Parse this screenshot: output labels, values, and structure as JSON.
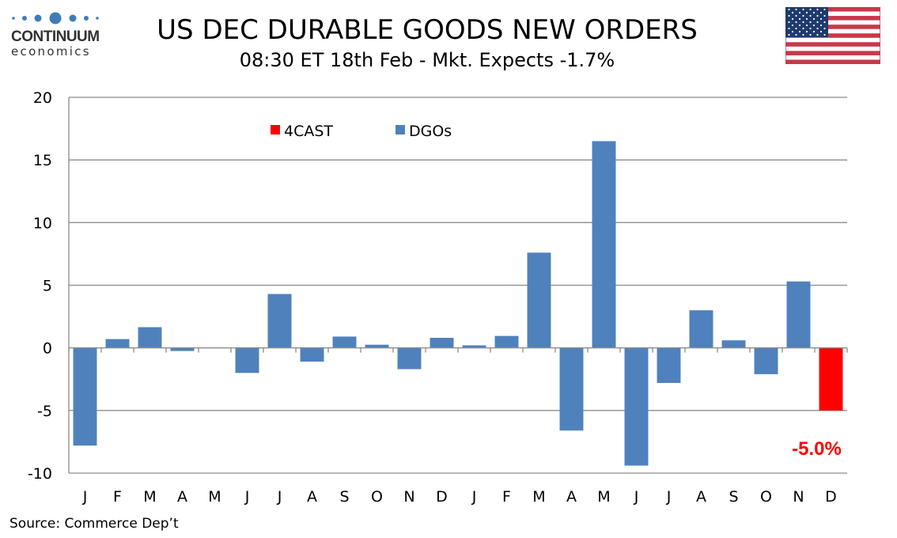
{
  "header": {
    "logo_name": "CONTINUUM",
    "logo_sub": "economics",
    "title": "US DEC DURABLE GOODS NEW ORDERS",
    "subtitle": "08:30 ET 18th Feb - Mkt. Expects -1.7%",
    "flag": "us-flag-icon"
  },
  "source": "Source: Commerce Dep’t",
  "colors": {
    "dgos": "#4f81bd",
    "forecast": "#ff0000",
    "grid": "#8c8c8c",
    "logo_blue": "#3d7cb7"
  },
  "chart_data": {
    "type": "bar",
    "title": "US DEC DURABLE GOODS NEW ORDERS",
    "subtitle": "08:30 ET 18th Feb - Mkt. Expects -1.7%",
    "xlabel": "",
    "ylabel": "",
    "ylim": [
      -10,
      20
    ],
    "yticks": [
      -10,
      -5,
      0,
      5,
      10,
      15,
      20
    ],
    "ytick_labels": [
      "-10",
      "-5",
      "0",
      "5",
      "10",
      "15",
      "20"
    ],
    "grid": true,
    "legend_position": "top-left",
    "categories": [
      "J",
      "F",
      "M",
      "A",
      "M",
      "J",
      "J",
      "A",
      "S",
      "O",
      "N",
      "D",
      "J",
      "F",
      "M",
      "A",
      "M",
      "J",
      "J",
      "A",
      "S",
      "O",
      "N",
      "D"
    ],
    "series": [
      {
        "name": "4CAST",
        "color": "#ff0000",
        "values": [
          null,
          null,
          null,
          null,
          null,
          null,
          null,
          null,
          null,
          null,
          null,
          null,
          null,
          null,
          null,
          null,
          null,
          null,
          null,
          null,
          null,
          null,
          null,
          -5.0
        ]
      },
      {
        "name": "DGOs",
        "color": "#4f81bd",
        "values": [
          -7.8,
          0.7,
          1.65,
          -0.25,
          0.0,
          -2.0,
          4.3,
          -1.1,
          0.9,
          0.25,
          -1.7,
          0.8,
          0.2,
          0.95,
          7.6,
          -6.6,
          16.5,
          -9.4,
          -2.8,
          3.0,
          0.6,
          -2.1,
          5.3,
          null
        ]
      }
    ],
    "annotations": [
      {
        "text": "-5.0%",
        "category_index": 23,
        "color": "#ff0000"
      }
    ]
  }
}
